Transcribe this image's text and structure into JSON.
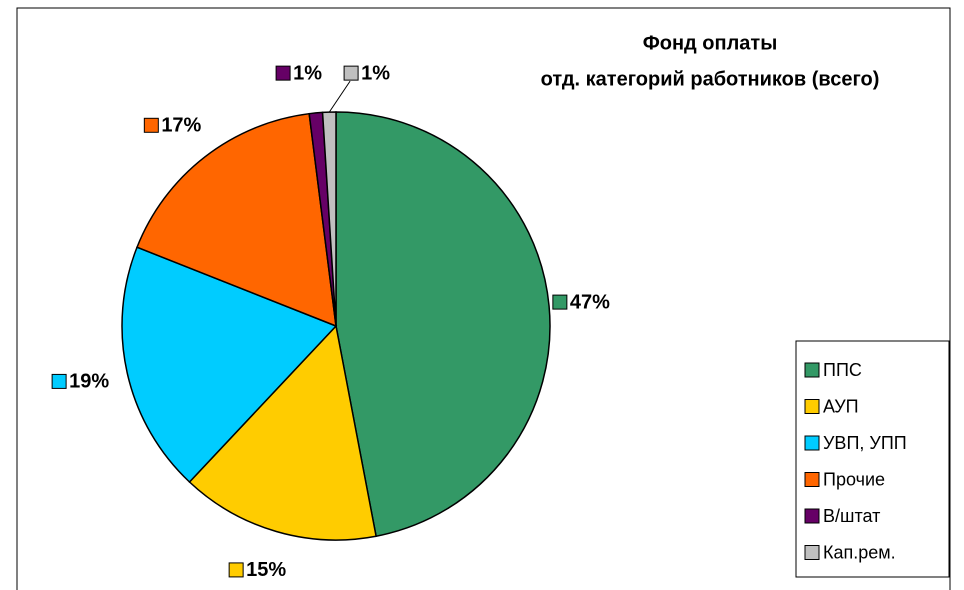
{
  "chart_data": {
    "type": "pie",
    "title": [
      "Фонд оплаты",
      "отд. категорий работников (всего)"
    ],
    "categories": [
      "ППС",
      "АУП",
      "УВП, УПП",
      "Прочие",
      "В/штат",
      "Кап.рем."
    ],
    "values": [
      47,
      15,
      19,
      17,
      1,
      1
    ],
    "value_labels": [
      "47%",
      "15%",
      "19%",
      "17%",
      "1%",
      "1%"
    ],
    "colors": [
      "#339966",
      "#ffcc00",
      "#00ccff",
      "#ff6600",
      "#660066",
      "#c0c0c0"
    ],
    "legend": "right"
  }
}
